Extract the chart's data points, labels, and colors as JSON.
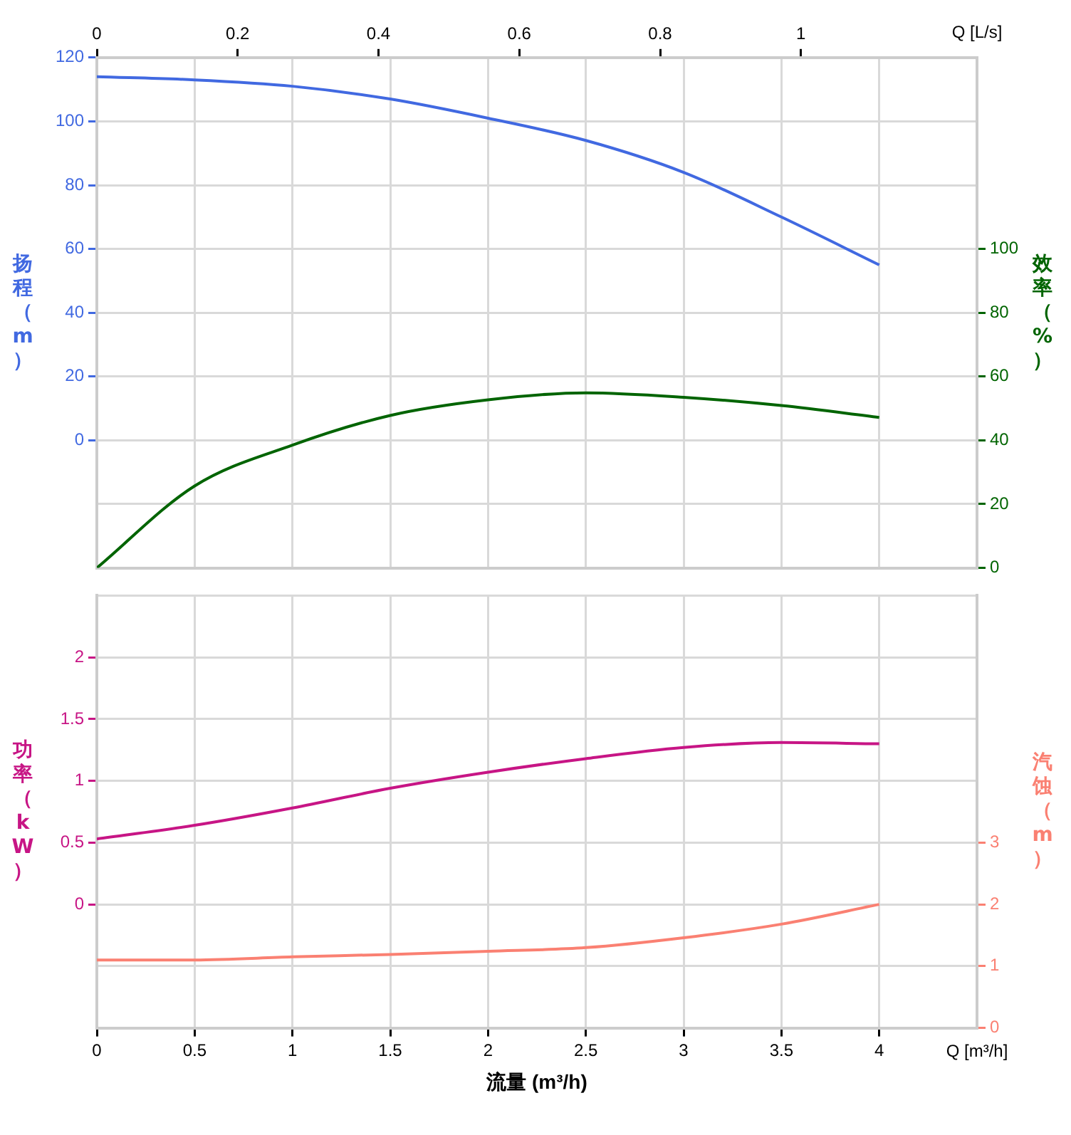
{
  "chart_data": [
    {
      "type": "line",
      "x2label": "Q [L/s]",
      "ylabel": "扬程（m）",
      "y2label": "效率（%）",
      "categories": [
        null,
        null,
        null,
        null,
        null,
        null,
        null,
        null,
        null
      ],
      "x2lim": [
        0,
        1.25
      ],
      "x2ticks": [
        0,
        0.2,
        0.4,
        0.6,
        0.8,
        1
      ],
      "ylim": [
        -40,
        120
      ],
      "yticks": [
        {
          "value": -40,
          "label": null
        },
        {
          "value": -20,
          "label": null
        },
        0,
        20,
        40,
        60,
        80,
        100,
        120
      ],
      "y2lim": [
        0,
        160
      ],
      "y2ticks": [
        0,
        20,
        40,
        60,
        80,
        100
      ],
      "grid": true,
      "series": [
        {
          "color": "#4169e1",
          "values": [
            114,
            113,
            111,
            107,
            101,
            94,
            84,
            70,
            55
          ]
        },
        {
          "color": "#006400",
          "axis": "y2",
          "values": [
            0,
            25.7,
            38.5,
            47.8,
            52.7,
            54.9,
            53.5,
            50.9,
            47.2
          ]
        }
      ]
    },
    {
      "type": "line",
      "xlabel": "流量 (m³/h)",
      "ylabel": "功率（kW）",
      "y2label": "汽蚀（m）",
      "annotations": [
        "Q [m³/h]"
      ],
      "x": [
        0,
        0.5,
        1,
        1.5,
        2,
        2.5,
        3,
        3.5,
        4
      ],
      "xlim": [
        0,
        4.5
      ],
      "xticks": [
        0,
        0.5,
        1,
        1.5,
        2,
        2.5,
        3,
        3.5,
        4,
        {
          "value": 4.5,
          "label": null
        }
      ],
      "ylim": [
        -1,
        2.5
      ],
      "yticks": [
        {
          "value": -1,
          "label": null
        },
        {
          "value": -0.5,
          "label": null
        },
        0,
        0.5,
        1,
        1.5,
        2,
        {
          "value": 2.5,
          "label": null
        }
      ],
      "y2lim": [
        0,
        7
      ],
      "y2ticks": [
        0,
        1,
        2,
        3
      ],
      "grid": true,
      "series": [
        {
          "color": "#c71585",
          "values": [
            0.53,
            0.64,
            0.78,
            0.94,
            1.07,
            1.18,
            1.27,
            1.31,
            1.3
          ]
        },
        {
          "color": "#fa8072",
          "axis": "y2",
          "values": [
            1.1,
            1.1,
            1.15,
            1.19,
            1.24,
            1.3,
            1.46,
            1.68,
            2.0
          ]
        }
      ]
    }
  ]
}
